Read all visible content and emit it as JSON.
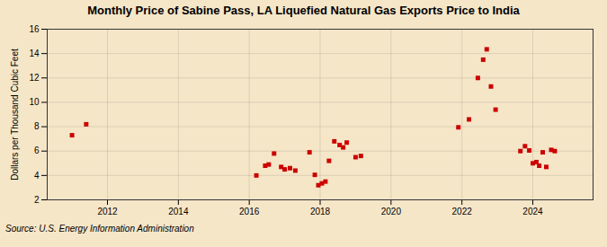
{
  "chart_data": {
    "type": "scatter",
    "title": "Monthly Price of Sabine Pass, LA Liquefied Natural Gas Exports Price to India",
    "ylabel": "Dollars per Thousand Cubic Feet",
    "source": "Source: U.S. Energy Information Administration",
    "color": "#cc0000",
    "marker": "square",
    "grid": true,
    "xlim": [
      2010.3,
      2025.7
    ],
    "ylim": [
      2,
      16
    ],
    "xticks": [
      2012,
      2014,
      2016,
      2018,
      2020,
      2022,
      2024
    ],
    "yticks": [
      2,
      4,
      6,
      8,
      10,
      12,
      14,
      16
    ],
    "x": [
      2011.0,
      2011.4,
      2016.2,
      2016.45,
      2016.55,
      2016.7,
      2016.9,
      2017.0,
      2017.15,
      2017.3,
      2017.7,
      2017.85,
      2017.95,
      2018.05,
      2018.15,
      2018.25,
      2018.4,
      2018.55,
      2018.65,
      2018.75,
      2019.0,
      2019.15,
      2021.9,
      2022.2,
      2022.45,
      2022.6,
      2022.7,
      2022.82,
      2022.95,
      2023.65,
      2023.78,
      2023.9,
      2024.0,
      2024.1,
      2024.18,
      2024.28,
      2024.38,
      2024.52,
      2024.62
    ],
    "values": [
      7.3,
      8.2,
      4.0,
      4.8,
      4.9,
      5.8,
      4.7,
      4.5,
      4.6,
      4.4,
      5.9,
      4.05,
      3.2,
      3.35,
      3.5,
      5.2,
      6.8,
      6.5,
      6.3,
      6.7,
      5.5,
      5.6,
      7.95,
      8.6,
      12.0,
      13.5,
      14.35,
      11.3,
      9.4,
      6.0,
      6.4,
      6.05,
      5.0,
      5.1,
      4.8,
      5.9,
      4.7,
      6.1,
      6.0
    ]
  }
}
